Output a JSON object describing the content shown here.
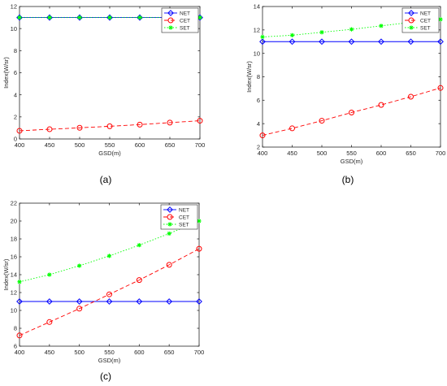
{
  "chart_data": [
    {
      "type": "line",
      "panel_label": "(a)",
      "xlabel": "GSD(m)",
      "ylabel": "Index(W/sr)",
      "x": [
        400,
        450,
        500,
        550,
        600,
        650,
        700
      ],
      "xlim": [
        400,
        700
      ],
      "ylim": [
        0,
        12
      ],
      "xticks": [
        "400",
        "450",
        "500",
        "550",
        "600",
        "650",
        "700"
      ],
      "yticks": [
        "0",
        "2",
        "4",
        "6",
        "8",
        "10",
        "12"
      ],
      "grid": false,
      "legend": "top-right",
      "series": [
        {
          "name": "NET",
          "color": "#0000ff",
          "dash": "solid",
          "marker": "diamond",
          "values": [
            11,
            11,
            11,
            11,
            11,
            11,
            11
          ]
        },
        {
          "name": "CET",
          "color": "#ff0000",
          "dash": "dashed",
          "marker": "circle",
          "values": [
            0.74,
            0.88,
            1.01,
            1.15,
            1.3,
            1.48,
            1.65
          ]
        },
        {
          "name": "SET",
          "color": "#00ff00",
          "dash": "dotted",
          "marker": "star",
          "values": [
            11,
            11,
            11,
            11,
            11,
            11,
            11
          ]
        }
      ]
    },
    {
      "type": "line",
      "panel_label": "(b)",
      "xlabel": "GSD(m)",
      "ylabel": "Index(W/sr)",
      "x": [
        400,
        450,
        500,
        550,
        600,
        650,
        700
      ],
      "xlim": [
        400,
        700
      ],
      "ylim": [
        2,
        14
      ],
      "xticks": [
        "400",
        "450",
        "500",
        "550",
        "600",
        "650",
        "700"
      ],
      "yticks": [
        "2",
        "4",
        "6",
        "8",
        "10",
        "12",
        "14"
      ],
      "grid": false,
      "legend": "top-right",
      "series": [
        {
          "name": "NET",
          "color": "#0000ff",
          "dash": "solid",
          "marker": "diamond",
          "values": [
            11,
            11,
            11,
            11,
            11,
            11,
            11
          ]
        },
        {
          "name": "CET",
          "color": "#ff0000",
          "dash": "dashed",
          "marker": "circle",
          "values": [
            3.0,
            3.6,
            4.25,
            4.95,
            5.6,
            6.3,
            7.05
          ]
        },
        {
          "name": "SET",
          "color": "#00ff00",
          "dash": "dotted",
          "marker": "star",
          "values": [
            11.4,
            11.55,
            11.8,
            12.05,
            12.35,
            12.65,
            12.9
          ]
        }
      ]
    },
    {
      "type": "line",
      "panel_label": "(c)",
      "xlabel": "GSD(m)",
      "ylabel": "Index(W/sr)",
      "x": [
        400,
        450,
        500,
        550,
        600,
        650,
        700
      ],
      "xlim": [
        400,
        700
      ],
      "ylim": [
        6,
        22
      ],
      "xticks": [
        "400",
        "450",
        "500",
        "550",
        "600",
        "650",
        "700"
      ],
      "yticks": [
        "6",
        "8",
        "10",
        "12",
        "14",
        "16",
        "18",
        "20",
        "22"
      ],
      "grid": false,
      "legend": "top-right",
      "series": [
        {
          "name": "NET",
          "color": "#0000ff",
          "dash": "solid",
          "marker": "diamond",
          "values": [
            11,
            11,
            11,
            11,
            11,
            11,
            11
          ]
        },
        {
          "name": "CET",
          "color": "#ff0000",
          "dash": "dashed",
          "marker": "circle",
          "values": [
            7.2,
            8.7,
            10.2,
            11.8,
            13.4,
            15.1,
            16.9
          ]
        },
        {
          "name": "SET",
          "color": "#00ff00",
          "dash": "dotted",
          "marker": "star",
          "values": [
            13.2,
            14.0,
            15.0,
            16.1,
            17.3,
            18.6,
            20.0
          ]
        }
      ]
    }
  ]
}
